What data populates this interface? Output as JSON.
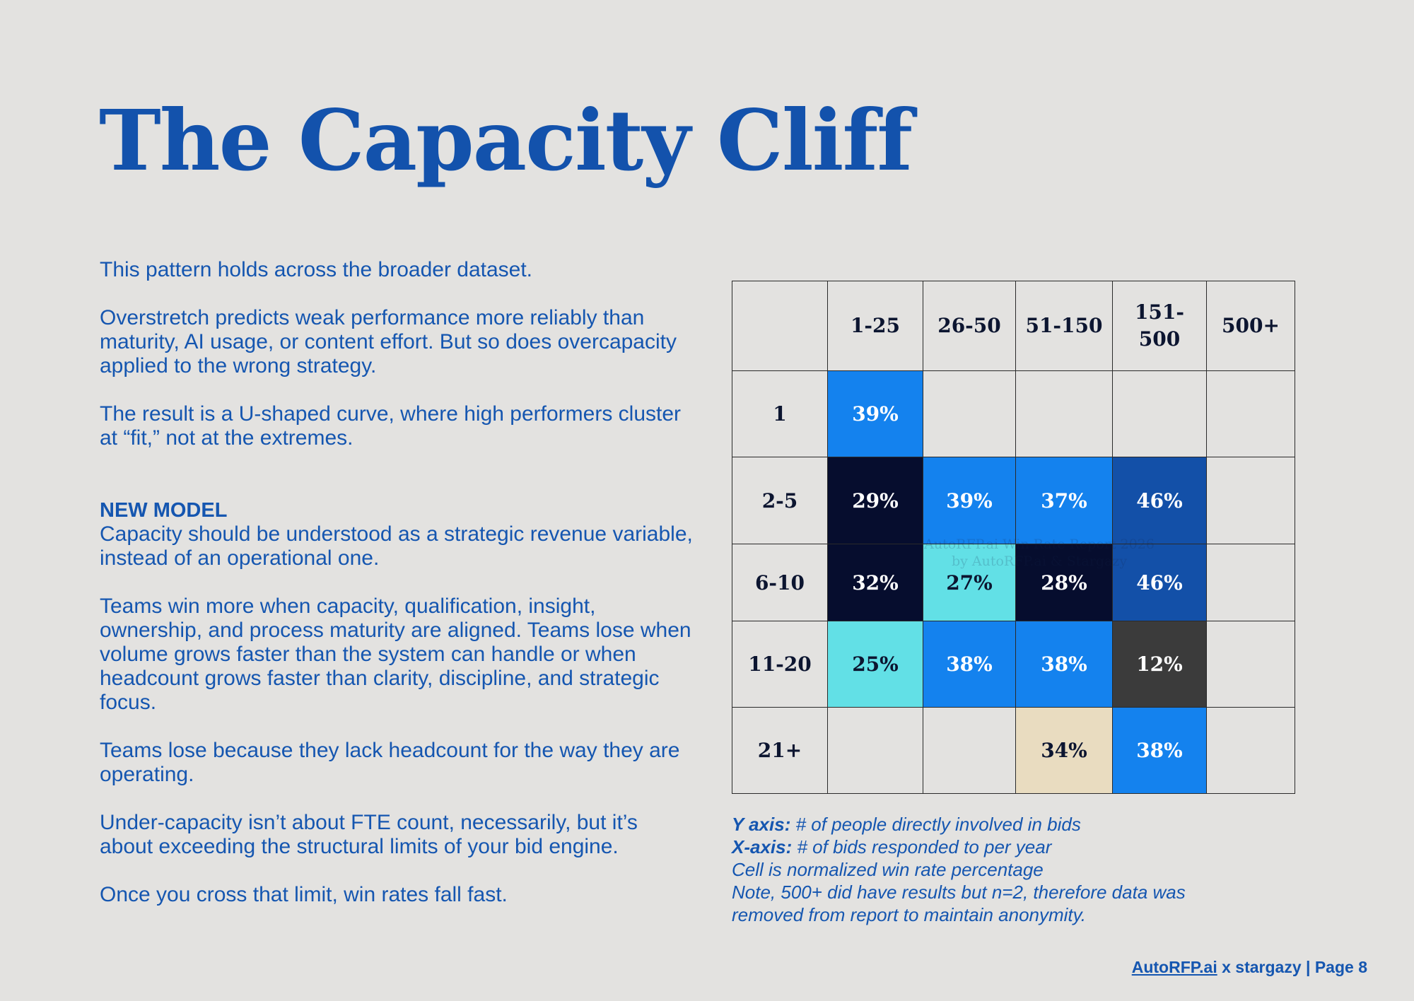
{
  "title": "The Capacity Cliff",
  "left": {
    "p1": "This pattern holds across the broader dataset.",
    "p2": "Overstretch predicts weak performance more reliably than maturity, AI usage, or content effort. But so does overcapacity applied to the wrong strategy.",
    "p3": "The result is a U-shaped curve, where high performers cluster at “fit,” not at the extremes.",
    "kicker": "NEW MODEL",
    "p4": "Capacity should be understood as a strategic revenue variable, instead of an operational one.",
    "p5": "Teams win more when capacity, qualification, insight, ownership, and process maturity are aligned. Teams lose when volume grows faster than the system can handle or when headcount grows faster than clarity, discipline, and strategic focus.",
    "p6": "Teams lose because they lack headcount for the way they are operating.",
    "p7": "Under-capacity isn’t about FTE count, necessarily, but it’s about exceeding the structural limits of your bid engine.",
    "p8": "Once you cross that limit, win rates fall fast."
  },
  "chart_data": {
    "type": "heatmap",
    "columns": [
      "1-25",
      "26-50",
      "51-150",
      "151-\n500",
      "500+"
    ],
    "rows": [
      {
        "label": "1",
        "cells": [
          "39%",
          "",
          "",
          "",
          ""
        ],
        "colors": [
          "#1482ee",
          "",
          "",
          "",
          ""
        ]
      },
      {
        "label": "2-5",
        "cells": [
          "29%",
          "39%",
          "37%",
          "46%",
          ""
        ],
        "colors": [
          "#060d2e",
          "#1482ee",
          "#1482ee",
          "#1350a8",
          ""
        ]
      },
      {
        "label": "6-10",
        "cells": [
          "32%",
          "27%",
          "28%",
          "46%",
          ""
        ],
        "colors": [
          "#060d2e",
          "#62e0e6",
          "#060d2e",
          "#1350a8",
          ""
        ]
      },
      {
        "label": "11-20",
        "cells": [
          "25%",
          "38%",
          "38%",
          "12%",
          ""
        ],
        "colors": [
          "#62e0e6",
          "#1482ee",
          "#1482ee",
          "#3b3b3b",
          ""
        ]
      },
      {
        "label": "21+",
        "cells": [
          "",
          "",
          "34%",
          "38%",
          ""
        ],
        "colors": [
          "",
          "",
          "#e9dcc0",
          "#1482ee",
          ""
        ]
      }
    ],
    "light_text_colors": [
      "#1482ee",
      "#060d2e",
      "#1350a8",
      "#3b3b3b"
    ],
    "watermark": "AutoRFP.ai Win Rate Report 2026\nby AutoRFP.ai & Stargazy"
  },
  "notes": {
    "y_label": "Y axis:",
    "y_text": " # of people directly involved in bids",
    "x_label": "X-axis:",
    "x_text": " # of bids responded to per year",
    "line3": "Cell is normalized win rate percentage",
    "line4": "Note, 500+ did have results but n=2, therefore data was",
    "line5": "removed from report to maintain anonymity."
  },
  "footer": {
    "link": "AutoRFP.ai",
    "rest": " x stargazy | Page 8"
  }
}
